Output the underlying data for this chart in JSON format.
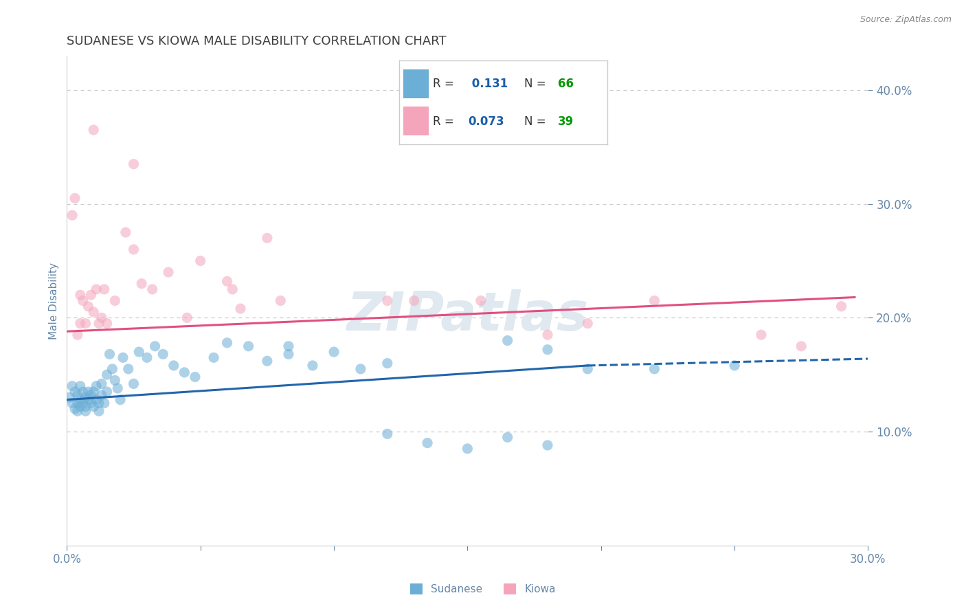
{
  "title": "SUDANESE VS KIOWA MALE DISABILITY CORRELATION CHART",
  "source_text": "Source: ZipAtlas.com",
  "ylabel": "Male Disability",
  "xlim": [
    0.0,
    0.3
  ],
  "ylim": [
    0.0,
    0.43
  ],
  "yticks": [
    0.1,
    0.2,
    0.3,
    0.4
  ],
  "ytick_labels": [
    "10.0%",
    "20.0%",
    "30.0%",
    "40.0%"
  ],
  "xticks": [
    0.0,
    0.05,
    0.1,
    0.15,
    0.2,
    0.25,
    0.3
  ],
  "xtick_labels": [
    "0.0%",
    "",
    "",
    "",
    "",
    "",
    "30.0%"
  ],
  "sudanese_color": "#6baed6",
  "kiowa_color": "#f4a5bc",
  "sudanese_R": 0.131,
  "sudanese_N": 66,
  "kiowa_R": 0.073,
  "kiowa_N": 39,
  "sudanese_line_color": "#2166ac",
  "kiowa_line_color": "#e05080",
  "background_color": "#ffffff",
  "grid_color": "#cccccc",
  "title_color": "#404040",
  "axis_label_color": "#6688aa",
  "tick_color": "#6688aa",
  "legend_R_color": "#1a5faa",
  "legend_N_color": "#009900",
  "sud_line_x0": 0.0,
  "sud_line_y0": 0.128,
  "sud_line_x1": 0.195,
  "sud_line_y1": 0.158,
  "sud_line_dash_x1": 0.3,
  "sud_line_dash_y1": 0.164,
  "kio_line_x0": 0.0,
  "kio_line_y0": 0.188,
  "kio_line_x1": 0.295,
  "kio_line_y1": 0.218,
  "sudanese_x": [
    0.001,
    0.002,
    0.002,
    0.003,
    0.003,
    0.004,
    0.004,
    0.004,
    0.005,
    0.005,
    0.005,
    0.006,
    0.006,
    0.007,
    0.007,
    0.007,
    0.008,
    0.008,
    0.009,
    0.009,
    0.01,
    0.01,
    0.011,
    0.011,
    0.012,
    0.012,
    0.013,
    0.013,
    0.014,
    0.015,
    0.015,
    0.016,
    0.017,
    0.018,
    0.019,
    0.02,
    0.021,
    0.023,
    0.025,
    0.027,
    0.03,
    0.033,
    0.036,
    0.04,
    0.044,
    0.048,
    0.055,
    0.06,
    0.068,
    0.075,
    0.083,
    0.092,
    0.1,
    0.11,
    0.12,
    0.135,
    0.15,
    0.165,
    0.18,
    0.195,
    0.083,
    0.12,
    0.25,
    0.165,
    0.22,
    0.18
  ],
  "sudanese_y": [
    0.13,
    0.125,
    0.14,
    0.12,
    0.135,
    0.125,
    0.132,
    0.118,
    0.128,
    0.122,
    0.14,
    0.125,
    0.135,
    0.118,
    0.13,
    0.122,
    0.128,
    0.135,
    0.125,
    0.132,
    0.122,
    0.135,
    0.128,
    0.14,
    0.125,
    0.118,
    0.132,
    0.142,
    0.125,
    0.135,
    0.15,
    0.168,
    0.155,
    0.145,
    0.138,
    0.128,
    0.165,
    0.155,
    0.142,
    0.17,
    0.165,
    0.175,
    0.168,
    0.158,
    0.152,
    0.148,
    0.165,
    0.178,
    0.175,
    0.162,
    0.168,
    0.158,
    0.17,
    0.155,
    0.098,
    0.09,
    0.085,
    0.095,
    0.088,
    0.155,
    0.175,
    0.16,
    0.158,
    0.18,
    0.155,
    0.172
  ],
  "kiowa_x": [
    0.002,
    0.003,
    0.004,
    0.005,
    0.005,
    0.006,
    0.007,
    0.008,
    0.009,
    0.01,
    0.011,
    0.012,
    0.013,
    0.014,
    0.015,
    0.018,
    0.022,
    0.025,
    0.028,
    0.032,
    0.038,
    0.05,
    0.06,
    0.062,
    0.075,
    0.08,
    0.13,
    0.155,
    0.195,
    0.22,
    0.26,
    0.29,
    0.01,
    0.025,
    0.045,
    0.065,
    0.12,
    0.18,
    0.275
  ],
  "kiowa_y": [
    0.29,
    0.305,
    0.185,
    0.195,
    0.22,
    0.215,
    0.195,
    0.21,
    0.22,
    0.205,
    0.225,
    0.195,
    0.2,
    0.225,
    0.195,
    0.215,
    0.275,
    0.26,
    0.23,
    0.225,
    0.24,
    0.25,
    0.232,
    0.225,
    0.27,
    0.215,
    0.215,
    0.215,
    0.195,
    0.215,
    0.185,
    0.21,
    0.365,
    0.335,
    0.2,
    0.208,
    0.215,
    0.185,
    0.175
  ]
}
